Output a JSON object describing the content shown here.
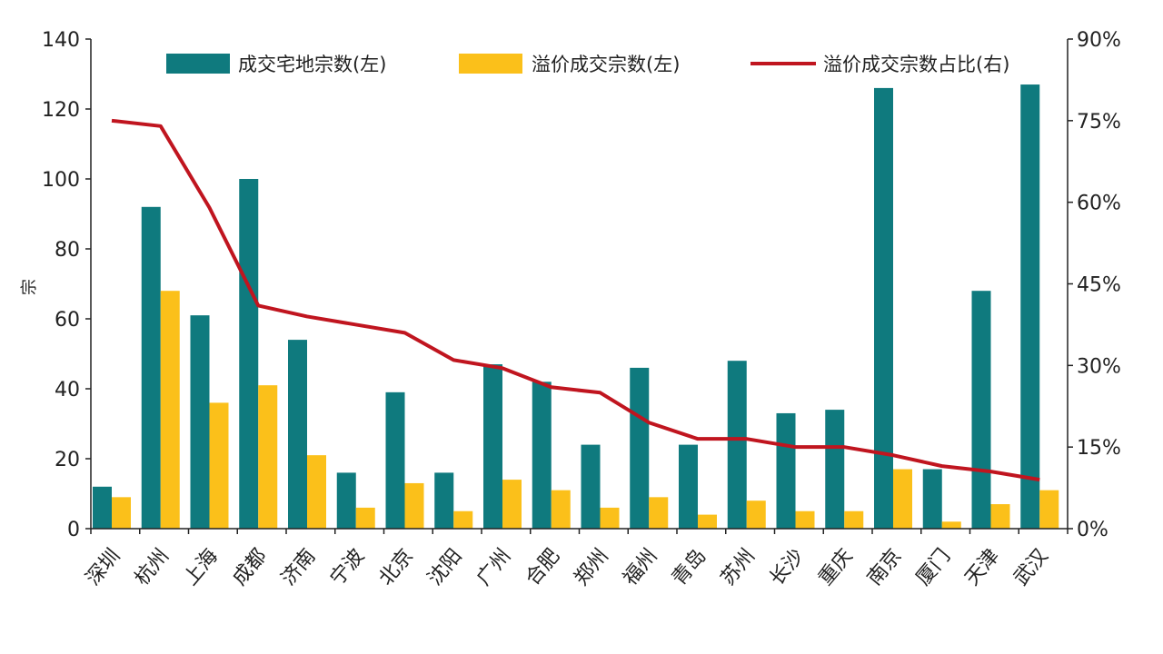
{
  "chart_data": {
    "type": "bar",
    "categories": [
      "深圳",
      "杭州",
      "上海",
      "成都",
      "济南",
      "宁波",
      "北京",
      "沈阳",
      "广州",
      "合肥",
      "郑州",
      "福州",
      "青岛",
      "苏州",
      "长沙",
      "重庆",
      "南京",
      "厦门",
      "天津",
      "武汉"
    ],
    "series": [
      {
        "name": "成交宅地宗数(左)",
        "type": "bar",
        "axis": "left",
        "values": [
          12,
          92,
          61,
          100,
          54,
          16,
          39,
          16,
          47,
          42,
          24,
          46,
          24,
          48,
          33,
          34,
          126,
          17,
          68,
          127
        ]
      },
      {
        "name": "溢价成交宗数(左)",
        "type": "bar",
        "axis": "left",
        "values": [
          9,
          68,
          36,
          41,
          21,
          6,
          13,
          5,
          14,
          11,
          6,
          9,
          4,
          8,
          5,
          5,
          17,
          2,
          7,
          11
        ]
      },
      {
        "name": "溢价成交宗数占比(右)",
        "type": "line",
        "axis": "right",
        "values": [
          75,
          74,
          59,
          41,
          39,
          37.5,
          36,
          31,
          29.5,
          26,
          25,
          19.5,
          16.5,
          16.5,
          15,
          15,
          13.5,
          11.5,
          10.5,
          9
        ]
      }
    ],
    "ylabel": "宗",
    "ylim": [
      0,
      140
    ],
    "yticks": [
      "0",
      "20",
      "40",
      "60",
      "80",
      "100",
      "120",
      "140"
    ],
    "y2lim": [
      0,
      90
    ],
    "y2ticks": [
      "0%",
      "15%",
      "30%",
      "45%",
      "60%",
      "75%",
      "90%"
    ],
    "legend_position": "top",
    "grid": false,
    "colors": {
      "bar1": "#0f7a7e",
      "bar2": "#fbc01a",
      "line": "#c0151f",
      "axis": "#222222"
    }
  }
}
